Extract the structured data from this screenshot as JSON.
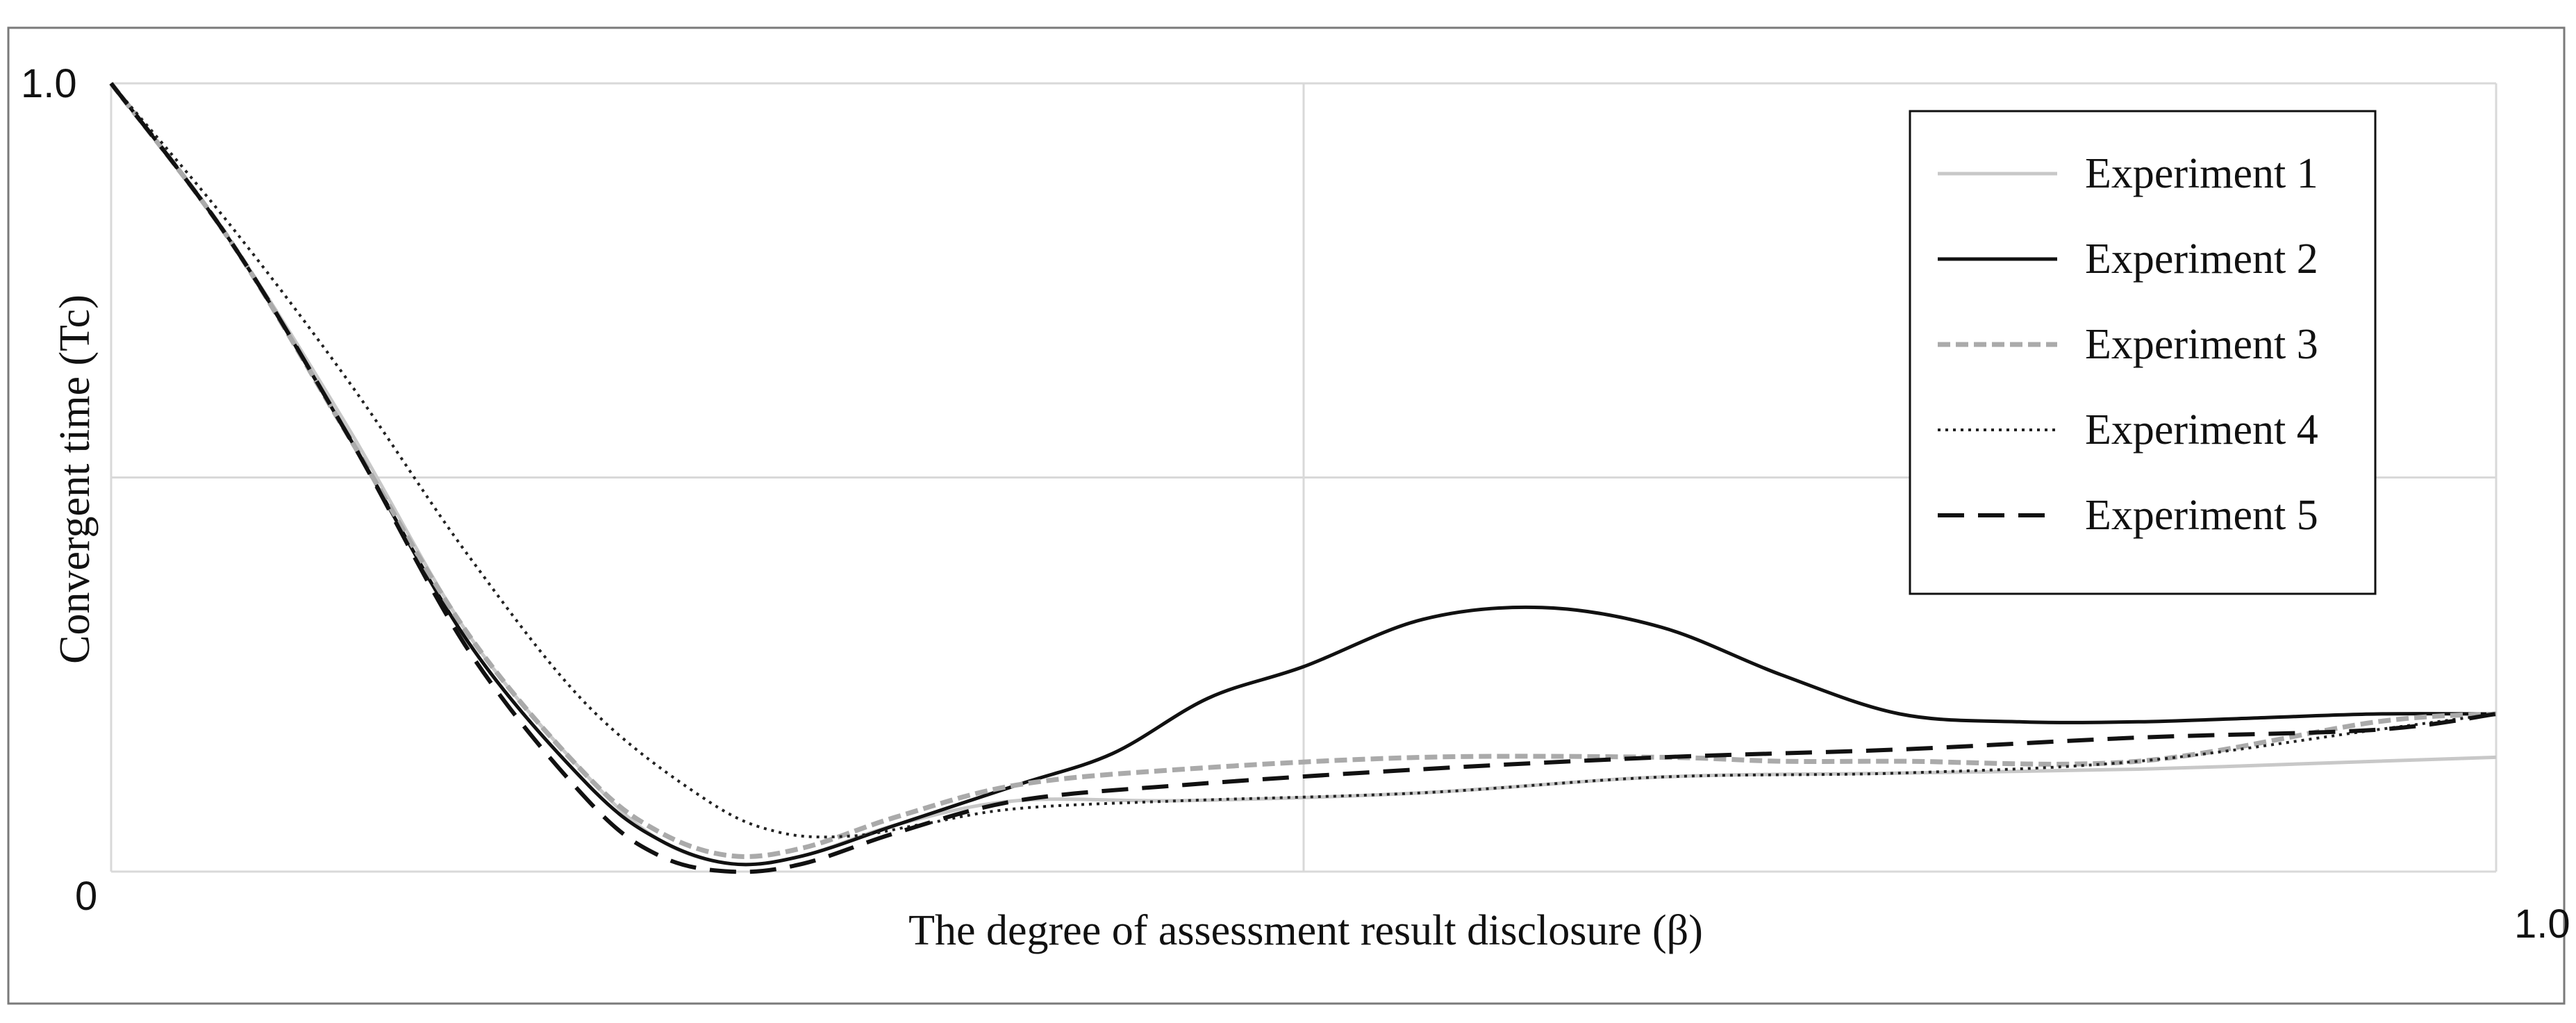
{
  "chart_data": {
    "type": "line",
    "title": "",
    "xlabel": "The degree of assessment result disclosure (β)",
    "ylabel": "Convergent time (Tc)",
    "xlim": [
      0,
      1
    ],
    "ylim": [
      0,
      1
    ],
    "x_tick_labels": [
      "0",
      "1.0"
    ],
    "y_tick_labels": [
      "1.0"
    ],
    "grid": true,
    "legend_position": "top-right",
    "series": [
      {
        "name": "Experiment 1",
        "color": "#c8c8c8",
        "dash": "solid",
        "points": [
          [
            0,
            1.0
          ],
          [
            0.05,
            0.8
          ],
          [
            0.1,
            0.56
          ],
          [
            0.15,
            0.3
          ],
          [
            0.2,
            0.12
          ],
          [
            0.23,
            0.04
          ],
          [
            0.26,
            0.01
          ],
          [
            0.29,
            0.02
          ],
          [
            0.33,
            0.06
          ],
          [
            0.38,
            0.09
          ],
          [
            0.45,
            0.09
          ],
          [
            0.55,
            0.1
          ],
          [
            0.65,
            0.12
          ],
          [
            0.75,
            0.125
          ],
          [
            0.85,
            0.13
          ],
          [
            0.95,
            0.14
          ],
          [
            1.0,
            0.145
          ]
        ]
      },
      {
        "name": "Experiment 2",
        "color": "#111111",
        "dash": "solid",
        "points": [
          [
            0,
            1.0
          ],
          [
            0.05,
            0.8
          ],
          [
            0.1,
            0.55
          ],
          [
            0.15,
            0.29
          ],
          [
            0.2,
            0.11
          ],
          [
            0.23,
            0.04
          ],
          [
            0.26,
            0.01
          ],
          [
            0.29,
            0.02
          ],
          [
            0.33,
            0.06
          ],
          [
            0.38,
            0.11
          ],
          [
            0.42,
            0.15
          ],
          [
            0.46,
            0.22
          ],
          [
            0.5,
            0.26
          ],
          [
            0.55,
            0.32
          ],
          [
            0.6,
            0.335
          ],
          [
            0.65,
            0.31
          ],
          [
            0.7,
            0.25
          ],
          [
            0.75,
            0.2
          ],
          [
            0.8,
            0.19
          ],
          [
            0.85,
            0.19
          ],
          [
            0.9,
            0.195
          ],
          [
            0.95,
            0.2
          ],
          [
            1.0,
            0.2
          ]
        ]
      },
      {
        "name": "Experiment 3",
        "color": "#aaaaaa",
        "dash": "dashed-outline",
        "points": [
          [
            0,
            1.0
          ],
          [
            0.05,
            0.8
          ],
          [
            0.1,
            0.55
          ],
          [
            0.15,
            0.3
          ],
          [
            0.2,
            0.12
          ],
          [
            0.23,
            0.05
          ],
          [
            0.26,
            0.02
          ],
          [
            0.29,
            0.03
          ],
          [
            0.33,
            0.07
          ],
          [
            0.38,
            0.11
          ],
          [
            0.45,
            0.13
          ],
          [
            0.55,
            0.145
          ],
          [
            0.65,
            0.145
          ],
          [
            0.7,
            0.14
          ],
          [
            0.75,
            0.14
          ],
          [
            0.85,
            0.14
          ],
          [
            0.95,
            0.19
          ],
          [
            1.0,
            0.2
          ]
        ]
      },
      {
        "name": "Experiment 4",
        "color": "#222222",
        "dash": "dotted",
        "points": [
          [
            0,
            1.0
          ],
          [
            0.05,
            0.82
          ],
          [
            0.1,
            0.62
          ],
          [
            0.15,
            0.4
          ],
          [
            0.2,
            0.21
          ],
          [
            0.25,
            0.09
          ],
          [
            0.28,
            0.05
          ],
          [
            0.31,
            0.045
          ],
          [
            0.34,
            0.06
          ],
          [
            0.38,
            0.08
          ],
          [
            0.45,
            0.09
          ],
          [
            0.55,
            0.1
          ],
          [
            0.65,
            0.12
          ],
          [
            0.75,
            0.125
          ],
          [
            0.85,
            0.14
          ],
          [
            0.95,
            0.18
          ],
          [
            1.0,
            0.2
          ]
        ]
      },
      {
        "name": "Experiment 5",
        "color": "#111111",
        "dash": "dashed",
        "points": [
          [
            0,
            1.0
          ],
          [
            0.05,
            0.8
          ],
          [
            0.1,
            0.55
          ],
          [
            0.15,
            0.28
          ],
          [
            0.2,
            0.09
          ],
          [
            0.23,
            0.02
          ],
          [
            0.26,
            0.0
          ],
          [
            0.29,
            0.01
          ],
          [
            0.33,
            0.05
          ],
          [
            0.38,
            0.09
          ],
          [
            0.45,
            0.11
          ],
          [
            0.55,
            0.13
          ],
          [
            0.65,
            0.145
          ],
          [
            0.75,
            0.155
          ],
          [
            0.85,
            0.17
          ],
          [
            0.95,
            0.18
          ],
          [
            1.0,
            0.2
          ]
        ]
      }
    ]
  }
}
